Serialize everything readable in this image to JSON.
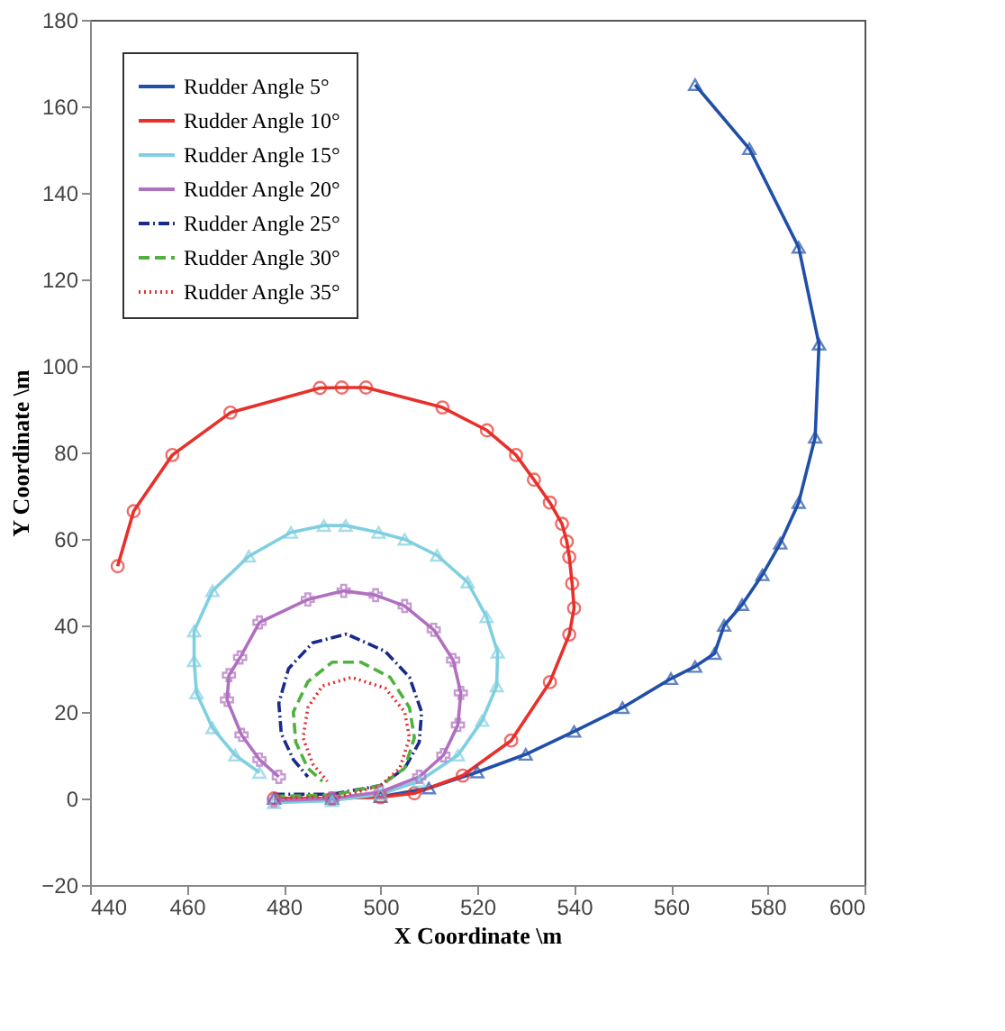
{
  "chart_data": {
    "type": "line",
    "xlabel": "X Coordinate \\m",
    "ylabel": "Y Coordinate \\m",
    "xlim": [
      440,
      600
    ],
    "xticks": [
      440,
      460,
      480,
      500,
      520,
      540,
      560,
      580,
      600
    ],
    "ylim": [
      -20,
      180
    ],
    "yticks": [
      -20,
      0,
      20,
      40,
      60,
      80,
      100,
      120,
      140,
      160,
      180
    ],
    "grid": false,
    "legend": "top left",
    "series": [
      {
        "name": "Rudder Angle 5°",
        "color": "#1f4fa8",
        "marker": "triangle",
        "line_style": "solid",
        "x": [
          478,
          490,
          500,
          510,
          520,
          530,
          540,
          550,
          560,
          565,
          569,
          571,
          574.7,
          578.9,
          582.6,
          586.4,
          589.8,
          590.6,
          586.4,
          576.2,
          565
        ],
        "values": [
          0,
          0,
          0.4,
          2.4,
          6.1,
          10.2,
          15.5,
          21,
          27.7,
          30.5,
          33.5,
          40,
          44.8,
          51.7,
          59,
          68.4,
          83.5,
          105,
          127.4,
          150.2,
          165
        ]
      },
      {
        "name": "Rudder Angle 10°",
        "color": "#e8302a",
        "marker": "circle",
        "line_style": "solid",
        "x": [
          478,
          490,
          500,
          507,
          517,
          527,
          535,
          539,
          540,
          539.6,
          539,
          538.5,
          537.5,
          535,
          531.7,
          528,
          522,
          512.8,
          497,
          492,
          487.5,
          469,
          457,
          449,
          445.7
        ],
        "values": [
          0,
          0,
          0.3,
          1.2,
          5.3,
          13.4,
          26.9,
          37.9,
          44,
          49.7,
          55.8,
          59.4,
          63.5,
          68.4,
          73.7,
          79.4,
          85.1,
          90.4,
          95,
          95,
          94.9,
          89.2,
          79.4,
          66.4,
          53.7
        ]
      },
      {
        "name": "Rudder Angle 15°",
        "color": "#7fcfe0",
        "marker": "triangle",
        "line_style": "solid",
        "x": [
          478,
          490,
          500,
          508,
          516,
          521,
          524,
          524.2,
          521.9,
          518,
          511.7,
          505,
          499.6,
          492.8,
          488.3,
          481.5,
          472.8,
          465.3,
          461.5,
          461.5,
          462,
          465.3,
          470,
          475
        ],
        "values": [
          -1,
          -0.5,
          1,
          4,
          10,
          18,
          26,
          33.8,
          42,
          50,
          56.2,
          59.9,
          61.5,
          63.1,
          63.1,
          61.5,
          56,
          48,
          38.7,
          31.8,
          24.4,
          16.3,
          10,
          6
        ]
      },
      {
        "name": "Rudder Angle 20°",
        "color": "#b070c0",
        "marker": "cross",
        "line_style": "solid",
        "x": [
          478,
          490,
          500,
          508,
          513,
          516,
          516.6,
          515,
          511,
          505,
          499,
          492.4,
          485,
          475,
          471,
          468.7,
          468.3,
          471.3,
          475,
          479
        ],
        "values": [
          -0.5,
          0,
          1.5,
          5,
          10,
          17,
          24.4,
          32,
          39,
          44.5,
          47,
          48,
          46,
          40.7,
          32.6,
          28.5,
          22.8,
          14.7,
          9,
          5
        ]
      },
      {
        "name": "Rudder Angle 25°",
        "color": "#1a2a8c",
        "marker": "none",
        "line_style": "dashdot",
        "x": [
          478,
          490,
          500,
          505,
          508,
          508.5,
          506,
          501,
          493,
          486,
          481,
          479,
          479.5,
          482,
          485
        ],
        "values": [
          1,
          1,
          3,
          7,
          13,
          20,
          28,
          34,
          38,
          36,
          30,
          22,
          15,
          9,
          5
        ]
      },
      {
        "name": "Rudder Angle 30°",
        "color": "#50b040",
        "marker": "none",
        "line_style": "dashed",
        "x": [
          478,
          490,
          500,
          505,
          507,
          506,
          502,
          496,
          490,
          485,
          482,
          482.5,
          485,
          488
        ],
        "values": [
          0.5,
          0.8,
          3,
          7,
          14,
          21,
          28,
          31.5,
          31.5,
          27,
          20,
          13,
          7,
          4
        ]
      },
      {
        "name": "Rudder Angle 35°",
        "color": "#e03030",
        "marker": "none",
        "line_style": "dotted",
        "x": [
          478,
          492,
          500,
          504,
          506,
          505,
          501,
          494,
          488,
          485,
          484,
          486,
          489
        ],
        "values": [
          0,
          0.5,
          3,
          7,
          14,
          20,
          25.5,
          28,
          26,
          21,
          14,
          8,
          4
        ]
      }
    ]
  }
}
